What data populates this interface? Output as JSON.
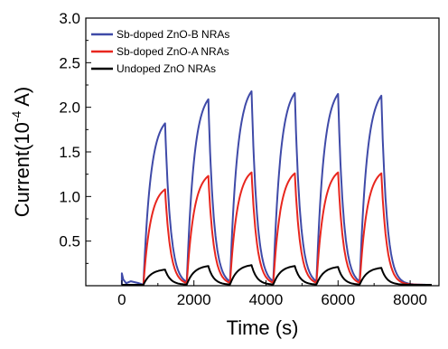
{
  "chart_data": {
    "type": "line",
    "title": "",
    "xlabel": "Time (s)",
    "ylabel_main": "Current(10",
    "ylabel_sup": "-4",
    "ylabel_end": " A)",
    "xlim": [
      -1000,
      8800
    ],
    "ylim": [
      0.0,
      3.0
    ],
    "x_ticks": [
      0,
      2000,
      4000,
      6000,
      8000
    ],
    "x_tick_labels": [
      "0",
      "2000",
      "4000",
      "6000",
      "8000"
    ],
    "y_ticks": [
      0.5,
      1.0,
      1.5,
      2.0,
      2.5,
      3.0
    ],
    "y_tick_labels": [
      "0.5",
      "1.0",
      "1.5",
      "2.0",
      "2.5",
      "3.0"
    ],
    "grid": false,
    "legend_position": "top-left",
    "cycle": {
      "on_times": [
        600,
        1800,
        3000,
        4200,
        5400,
        6600
      ],
      "on_duration": 600,
      "off_duration": 600,
      "end_time": 8600
    },
    "series": [
      {
        "name": "Sb-doped ZnO-B NRAs",
        "color": "#3f4aa8",
        "baseline": 0.01,
        "peaks": [
          1.82,
          2.09,
          2.18,
          2.16,
          2.15,
          2.13
        ],
        "initial_spike": 0.14
      },
      {
        "name": "Sb-doped ZnO-A NRAs",
        "color": "#e8261e",
        "baseline": 0.01,
        "peaks": [
          1.08,
          1.23,
          1.27,
          1.26,
          1.27,
          1.26
        ],
        "initial_spike": 0.0
      },
      {
        "name": "Undoped ZnO NRAs",
        "color": "#000000",
        "baseline": 0.01,
        "peaks": [
          0.18,
          0.22,
          0.23,
          0.22,
          0.21,
          0.2
        ],
        "initial_spike": 0.0
      }
    ]
  }
}
